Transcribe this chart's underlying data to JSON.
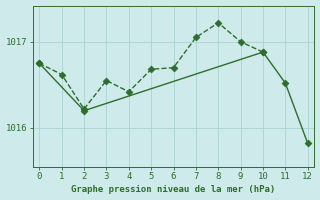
{
  "xlabel": "Graphe pression niveau de la mer (hPa)",
  "background_color": "#ceeaea",
  "line_color": "#2d6e2d",
  "x_dotted": [
    0,
    1,
    2,
    3,
    4,
    5,
    6,
    7,
    8,
    9,
    10
  ],
  "y_dotted": [
    1016.75,
    1016.62,
    1016.22,
    1016.55,
    1016.42,
    1016.68,
    1016.7,
    1017.05,
    1017.22,
    1017.0,
    1016.88
  ],
  "x_solid": [
    0,
    2,
    10,
    11,
    12
  ],
  "y_solid": [
    1016.75,
    1016.2,
    1016.88,
    1016.52,
    1015.82
  ],
  "ylim": [
    1015.55,
    1017.42
  ],
  "yticks": [
    1016,
    1017
  ],
  "xlim": [
    -0.3,
    12.3
  ],
  "xticks": [
    0,
    1,
    2,
    3,
    4,
    5,
    6,
    7,
    8,
    9,
    10,
    11,
    12
  ],
  "grid_color": "#aad4d4",
  "tick_color": "#2d6e2d",
  "label_color": "#2d6e2d",
  "markersize": 3.5,
  "linewidth": 1.0
}
